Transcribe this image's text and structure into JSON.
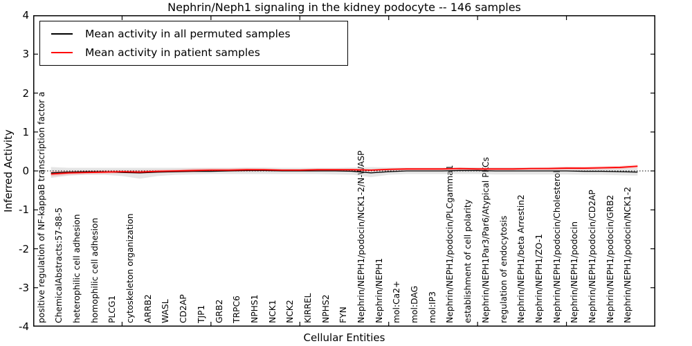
{
  "chart_data": {
    "type": "line",
    "title": "Nephrin/Neph1 signaling in the kidney podocyte -- 146 samples",
    "xlabel": "Cellular Entities",
    "ylabel": "Inferred Activity",
    "ylim": [
      -4,
      4
    ],
    "yticks": [
      4,
      3,
      2,
      1,
      0,
      -1,
      -2,
      -3,
      -4
    ],
    "grid": false,
    "zero_line": "dotted",
    "legend_position": "upper left",
    "categories": [
      "positive regulation of NF-kappaB transcription factor a",
      "ChemicalAbstracts:57-88-5",
      "heterophilic cell adhesion",
      "homophilic cell adhesion",
      "PLCG1",
      "cytoskeleton organization",
      "ARRB2",
      "WASL",
      "CD2AP",
      "TJP1",
      "GRB2",
      "TRPC6",
      "NPHS1",
      "NCK1",
      "NCK2",
      "KIRREL",
      "NPHS2",
      "FYN",
      "Nephrin/NEPH1/podocin/NCK1-2/N-WASP",
      "Nephrin/NEPH1",
      "mol:Ca2+",
      "mol:DAG",
      "mol:IP3",
      "Nephrin/NEPH1/podocin/PLCgamma1",
      "establishment of cell polarity",
      "Nephrin/NEPH1Par3/Par6/Atypical PKCs",
      "regulation of endocytosis",
      "Nephrin/NEPH1/beta Arrestin2",
      "Nephrin/NEPH1/ZO-1",
      "Nephrin/NEPH1/podocin/Cholesterol",
      "Nephrin/NEPH1/podocin",
      "Nephrin/NEPH1/podocin/CD2AP",
      "Nephrin/NEPH1/podocin/GRB2",
      "Nephrin/NEPH1/podocin/NCK1-2"
    ],
    "series": [
      {
        "name": "Mean activity in all permuted samples",
        "color": "#000000",
        "width": 1.3,
        "values": [
          -0.05,
          -0.03,
          -0.02,
          -0.02,
          -0.04,
          -0.05,
          -0.03,
          -0.02,
          -0.01,
          -0.01,
          0,
          0.01,
          0.01,
          0,
          0,
          0,
          0,
          -0.01,
          -0.05,
          -0.02,
          0,
          0,
          0,
          0.01,
          0.01,
          0,
          0,
          0,
          0,
          0,
          -0.01,
          -0.01,
          -0.02,
          -0.03
        ]
      },
      {
        "name": "Mean activity in patient samples",
        "color": "#ff0000",
        "width": 1.8,
        "values": [
          -0.08,
          -0.05,
          -0.04,
          -0.03,
          -0.02,
          -0.03,
          -0.01,
          0,
          0.01,
          0.02,
          0.02,
          0.03,
          0.03,
          0.02,
          0.02,
          0.03,
          0.03,
          0.03,
          0.02,
          0.04,
          0.05,
          0.05,
          0.05,
          0.06,
          0.05,
          0.05,
          0.05,
          0.06,
          0.06,
          0.07,
          0.07,
          0.08,
          0.09,
          0.12
        ]
      }
    ],
    "bands": [
      {
        "name": "gray-band",
        "color": "#bdbdbd",
        "opacity": 0.4,
        "upper": [
          0.1,
          0.08,
          0.08,
          0.08,
          0.08,
          0.08,
          0.08,
          0.08,
          0.08,
          0.08,
          0.08,
          0.09,
          0.09,
          0.08,
          0.08,
          0.08,
          0.08,
          0.09,
          0.1,
          0.09,
          0.08,
          0.08,
          0.08,
          0.09,
          0.09,
          0.09,
          0.09,
          0.09,
          0.09,
          0.1,
          0.09,
          0.09,
          0.08,
          0.08
        ],
        "lower": [
          -0.18,
          -0.12,
          -0.1,
          -0.1,
          -0.13,
          -0.2,
          -0.13,
          -0.1,
          -0.09,
          -0.08,
          -0.08,
          -0.08,
          -0.08,
          -0.08,
          -0.08,
          -0.08,
          -0.09,
          -0.1,
          -0.16,
          -0.1,
          -0.08,
          -0.08,
          -0.08,
          -0.08,
          -0.08,
          -0.09,
          -0.09,
          -0.09,
          -0.09,
          -0.09,
          -0.1,
          -0.1,
          -0.11,
          -0.12
        ]
      },
      {
        "name": "red-band",
        "color": "#ff8080",
        "opacity": 0.35,
        "upper": [
          0.0,
          0.0,
          0.01,
          0.02,
          0.02,
          0.02,
          0.03,
          0.04,
          0.06,
          0.07,
          0.07,
          0.07,
          0.06,
          0.05,
          0.05,
          0.06,
          0.06,
          0.06,
          0.05,
          0.07,
          0.08,
          0.08,
          0.08,
          0.09,
          0.08,
          0.08,
          0.08,
          0.09,
          0.1,
          0.11,
          0.11,
          0.12,
          0.13,
          0.16
        ],
        "lower": [
          -0.14,
          -0.1,
          -0.08,
          -0.07,
          -0.06,
          -0.07,
          -0.05,
          -0.04,
          -0.03,
          -0.02,
          -0.02,
          -0.01,
          0.0,
          -0.01,
          -0.01,
          0.0,
          0.0,
          0.0,
          -0.01,
          0.01,
          0.02,
          0.02,
          0.02,
          0.03,
          0.02,
          0.02,
          0.02,
          0.03,
          0.03,
          0.03,
          0.03,
          0.04,
          0.05,
          0.08
        ]
      }
    ]
  },
  "legend": {
    "entries": [
      {
        "label": "Mean activity in all permuted samples",
        "color": "#000000"
      },
      {
        "label": "Mean activity in patient samples",
        "color": "#ff0000"
      }
    ]
  }
}
